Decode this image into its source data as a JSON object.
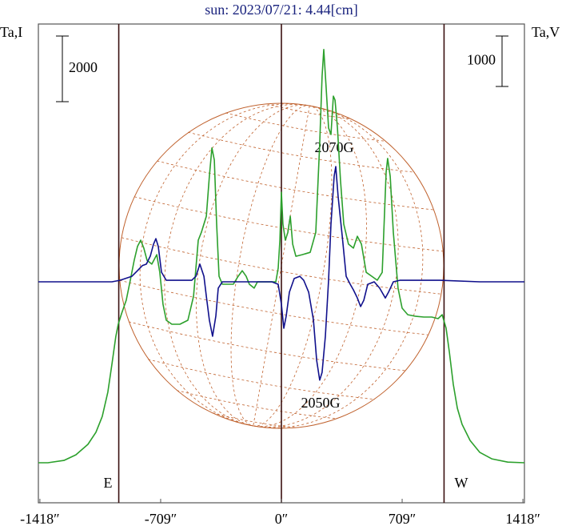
{
  "chart_data": {
    "type": "line",
    "title": "sun: 2023/07/21: 4.44[cm]",
    "y_label": "Ta,I",
    "y2_label": "Ta,V",
    "xlim": [
      -1427,
      1427
    ],
    "xticks": [
      {
        "value": -1418,
        "label": "-1418″"
      },
      {
        "value": -709,
        "label": "-709″"
      },
      {
        "value": 0,
        "label": "0″"
      },
      {
        "value": 709,
        "label": "709″"
      },
      {
        "value": 1418,
        "label": "1418″"
      }
    ],
    "ylim": [
      -1220,
      13366
    ],
    "y2lim": [
      -4381,
      5111
    ],
    "vlines": [
      -955,
      0,
      955
    ],
    "scale_bars": [
      {
        "value": 2000,
        "axis": "y"
      },
      {
        "value": 1000,
        "axis": "y2"
      }
    ],
    "annotations": [
      "2070G",
      "2050G",
      "E",
      "W"
    ],
    "series": [
      {
        "color": "#2ca02c",
        "axis": "y",
        "x": [
          -1427,
          -1371,
          -1277,
          -1207,
          -1136,
          -1089,
          -1052,
          -1019,
          -995,
          -972,
          -958,
          -939,
          -911,
          -887,
          -864,
          -845,
          -826,
          -808,
          -789,
          -761,
          -732,
          -714,
          -695,
          -676,
          -643,
          -596,
          -549,
          -516,
          -488,
          -470,
          -441,
          -423,
          -408,
          -394,
          -380,
          -366,
          -347,
          -315,
          -282,
          -254,
          -230,
          -207,
          -188,
          -160,
          -141,
          -103,
          -66,
          -33,
          -19,
          -9,
          0,
          9,
          23,
          38,
          52,
          66,
          85,
          122,
          169,
          202,
          225,
          239,
          249,
          263,
          277,
          291,
          305,
          315,
          329,
          347,
          366,
          394,
          423,
          446,
          470,
          498,
          531,
          563,
          592,
          615,
          624,
          639,
          657,
          685,
          709,
          742,
          789,
          836,
          883,
          920,
          944,
          967,
          986,
          1009,
          1033,
          1061,
          1108,
          1164,
          1235,
          1329,
          1427
        ],
        "values": [
          0,
          0,
          70,
          240,
          560,
          930,
          1410,
          2150,
          3000,
          3850,
          4220,
          4540,
          4950,
          5560,
          6170,
          6590,
          6780,
          6540,
          6170,
          6050,
          6340,
          5800,
          4830,
          4340,
          4220,
          4220,
          4340,
          5070,
          6780,
          7020,
          7510,
          8730,
          9590,
          9220,
          7270,
          5680,
          5440,
          5440,
          5440,
          5680,
          5850,
          5680,
          5440,
          5320,
          5510,
          5510,
          5510,
          5510,
          5930,
          6780,
          8240,
          7270,
          6780,
          7020,
          7510,
          6660,
          6290,
          6340,
          6410,
          7020,
          9710,
          11780,
          12590,
          11410,
          10200,
          10000,
          11170,
          11050,
          10200,
          8610,
          7270,
          6660,
          6540,
          6900,
          6660,
          5800,
          5680,
          5560,
          5800,
          8850,
          9270,
          8730,
          7020,
          5320,
          4710,
          4510,
          4460,
          4440,
          4440,
          4390,
          4510,
          4100,
          3370,
          2390,
          1660,
          1170,
          680,
          320,
          120,
          20,
          0
        ]
      },
      {
        "color": "#10108c",
        "axis": "y2",
        "x": [
          -1427,
          -1183,
          -995,
          -948,
          -878,
          -845,
          -817,
          -793,
          -770,
          -751,
          -737,
          -723,
          -704,
          -676,
          -620,
          -526,
          -502,
          -479,
          -455,
          -441,
          -423,
          -404,
          -385,
          -371,
          -347,
          -244,
          -56,
          -19,
          0,
          14,
          28,
          47,
          75,
          108,
          131,
          160,
          188,
          207,
          225,
          239,
          258,
          277,
          291,
          310,
          319,
          333,
          357,
          380,
          404,
          423,
          446,
          465,
          484,
          507,
          545,
          577,
          610,
          629,
          657,
          695,
          930,
          1164,
          1427
        ],
        "values": [
          0,
          0,
          0,
          30,
          110,
          220,
          320,
          350,
          510,
          745,
          855,
          700,
          190,
          30,
          30,
          30,
          110,
          350,
          110,
          -285,
          -760,
          -1080,
          -680,
          -125,
          0,
          0,
          0,
          -50,
          -445,
          -920,
          -680,
          -205,
          65,
          110,
          30,
          -205,
          -760,
          -1555,
          -1950,
          -1795,
          -1080,
          30,
          1145,
          2095,
          2285,
          1700,
          905,
          110,
          -50,
          -160,
          -320,
          -490,
          -365,
          -50,
          0,
          -125,
          -320,
          -205,
          0,
          30,
          30,
          0,
          0
        ]
      }
    ]
  }
}
